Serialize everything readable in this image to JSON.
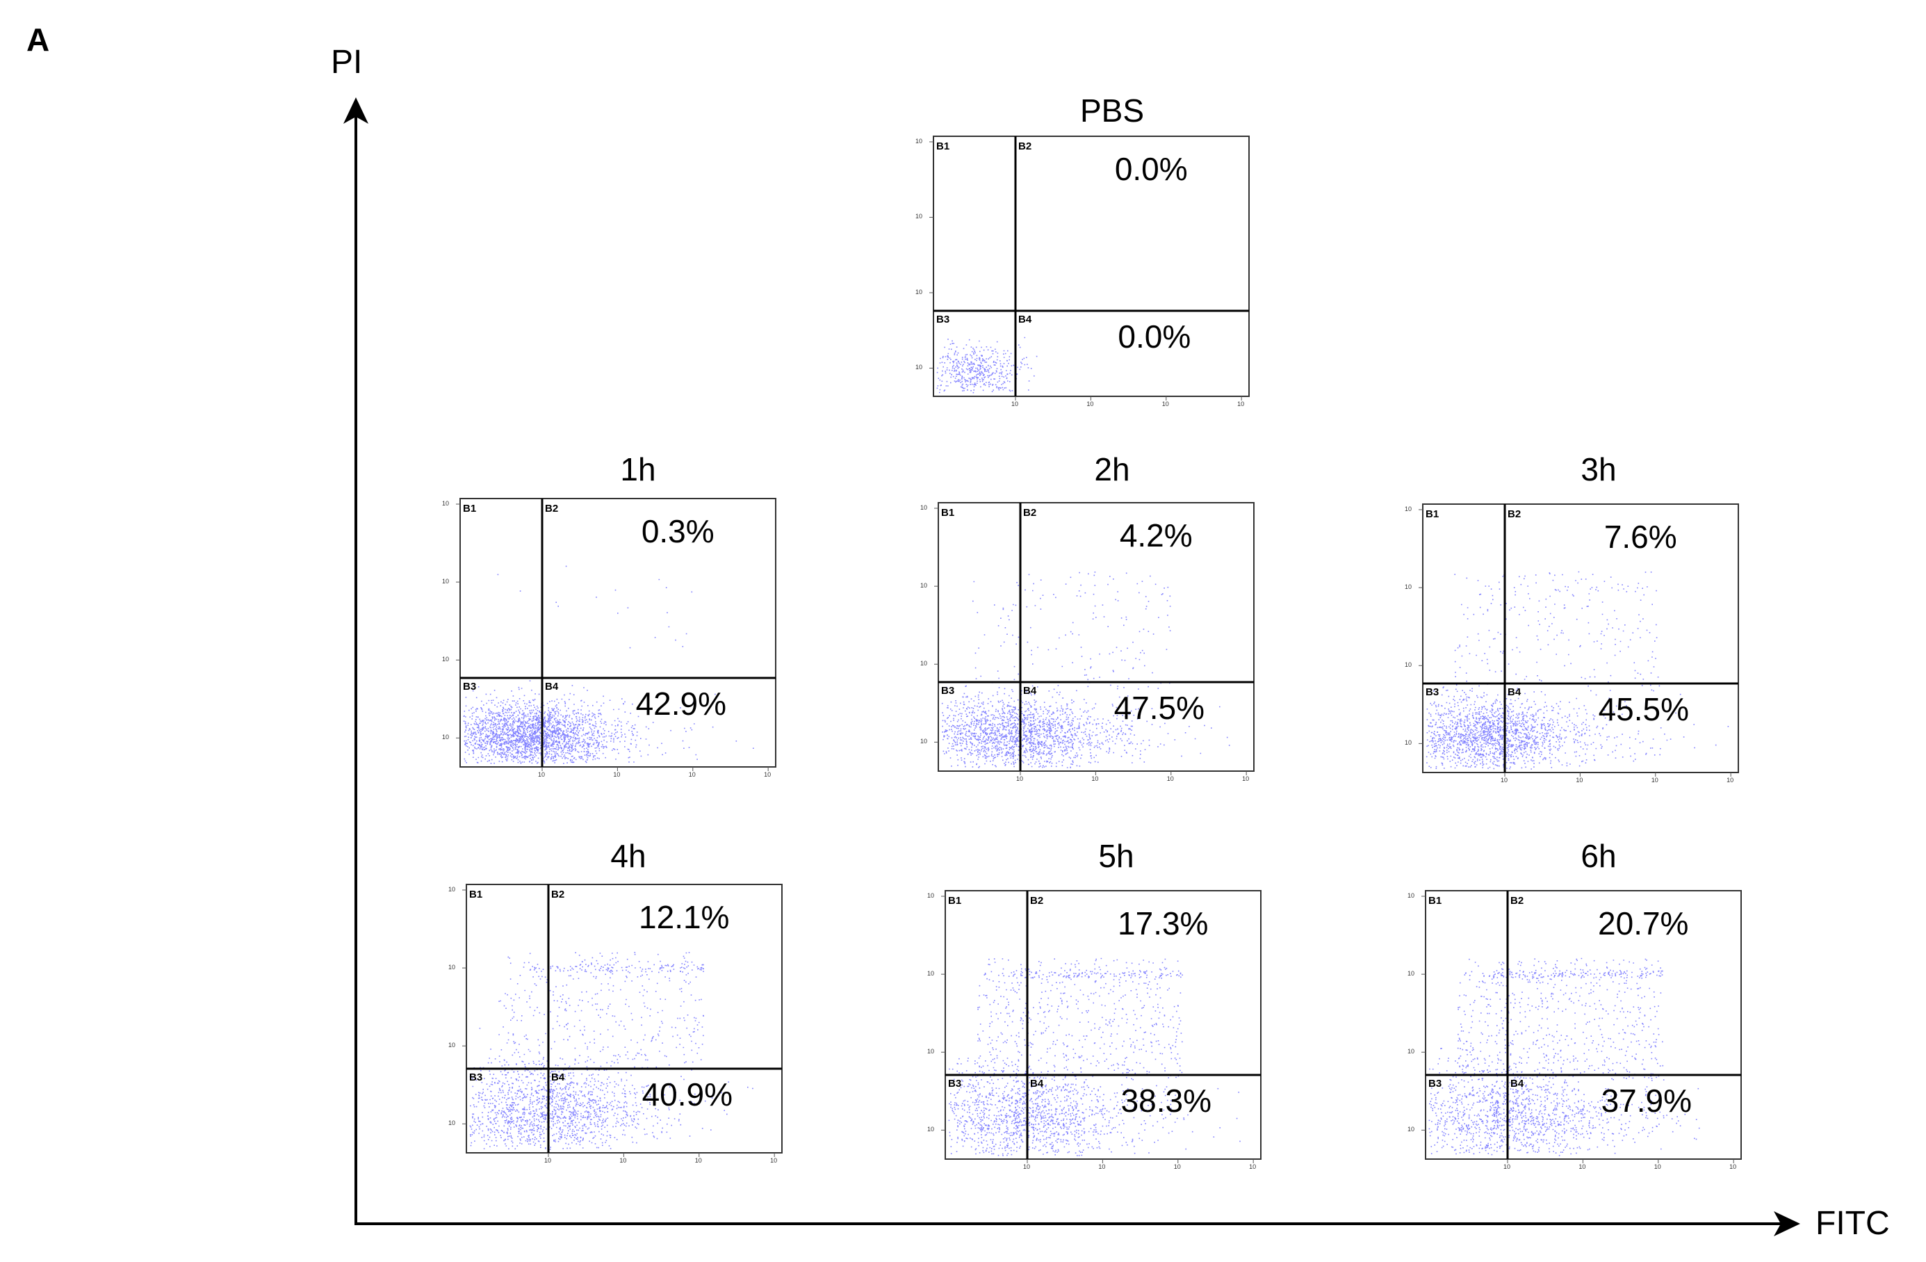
{
  "panel_label": "A",
  "y_axis_label": "PI",
  "x_axis_label": "FITC",
  "colors": {
    "dots": "#1a1aff",
    "axis": "#000000"
  },
  "chart_data": {
    "type": "scatter",
    "title": "",
    "xlabel": "FITC",
    "ylabel": "PI",
    "quadrant_labels": [
      "B1",
      "B2",
      "B3",
      "B4"
    ],
    "tick_label": "10",
    "plots": [
      {
        "title": "PBS",
        "upper_right": "0.0%",
        "lower_right": "0.0%"
      },
      {
        "title": "1h",
        "upper_right": "0.3%",
        "lower_right": "42.9%"
      },
      {
        "title": "2h",
        "upper_right": "4.2%",
        "lower_right": "47.5%"
      },
      {
        "title": "3h",
        "upper_right": "7.6%",
        "lower_right": "45.5%"
      },
      {
        "title": "4h",
        "upper_right": "12.1%",
        "lower_right": "40.9%"
      },
      {
        "title": "5h",
        "upper_right": "17.3%",
        "lower_right": "38.3%"
      },
      {
        "title": "6h",
        "upper_right": "20.7%",
        "lower_right": "37.9%"
      }
    ]
  }
}
